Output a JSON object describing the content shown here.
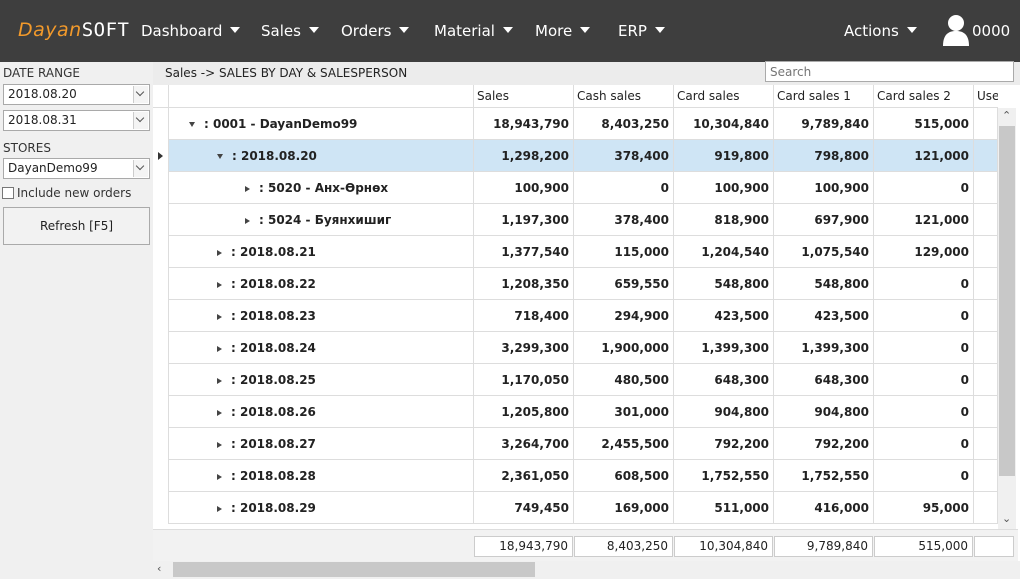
{
  "app": {
    "logo_part1": "Dayan",
    "logo_part2": "SOFT"
  },
  "nav": {
    "items": [
      "Dashboard",
      "Sales",
      "Orders",
      "Material",
      "More",
      "ERP"
    ],
    "actions": "Actions",
    "user": "0000"
  },
  "sidebar": {
    "date_range_label": "DATE RANGE",
    "date_from": "2018.08.20",
    "date_to": "2018.08.31",
    "stores_label": "STORES",
    "store": "DayanDemo99",
    "include_new_orders": "Include new orders",
    "refresh": "Refresh [F5]"
  },
  "breadcrumb": "Sales -> SALES BY DAY & SALESPERSON",
  "search": {
    "placeholder": "Search"
  },
  "grid": {
    "columns": [
      "Sales",
      "Cash sales",
      "Card sales",
      "Card sales 1",
      "Card sales 2",
      "Use"
    ],
    "rows": [
      {
        "label": ": 0001 - DayanDemo99",
        "level": 0,
        "expanded": true,
        "values": [
          "18,943,790",
          "8,403,250",
          "10,304,840",
          "9,789,840",
          "515,000"
        ]
      },
      {
        "label": ": 2018.08.20",
        "level": 1,
        "expanded": true,
        "selected": true,
        "values": [
          "1,298,200",
          "378,400",
          "919,800",
          "798,800",
          "121,000"
        ]
      },
      {
        "label": ": 5020 - Анх-Өрнөх",
        "level": 2,
        "expanded": false,
        "values": [
          "100,900",
          "0",
          "100,900",
          "100,900",
          "0"
        ]
      },
      {
        "label": ": 5024 - Буянхишиг",
        "level": 2,
        "expanded": false,
        "values": [
          "1,197,300",
          "378,400",
          "818,900",
          "697,900",
          "121,000"
        ]
      },
      {
        "label": ": 2018.08.21",
        "level": 1,
        "expanded": false,
        "values": [
          "1,377,540",
          "115,000",
          "1,204,540",
          "1,075,540",
          "129,000"
        ]
      },
      {
        "label": ": 2018.08.22",
        "level": 1,
        "expanded": false,
        "values": [
          "1,208,350",
          "659,550",
          "548,800",
          "548,800",
          "0"
        ]
      },
      {
        "label": ": 2018.08.23",
        "level": 1,
        "expanded": false,
        "values": [
          "718,400",
          "294,900",
          "423,500",
          "423,500",
          "0"
        ]
      },
      {
        "label": ": 2018.08.24",
        "level": 1,
        "expanded": false,
        "values": [
          "3,299,300",
          "1,900,000",
          "1,399,300",
          "1,399,300",
          "0"
        ]
      },
      {
        "label": ": 2018.08.25",
        "level": 1,
        "expanded": false,
        "values": [
          "1,170,050",
          "480,500",
          "648,300",
          "648,300",
          "0"
        ]
      },
      {
        "label": ": 2018.08.26",
        "level": 1,
        "expanded": false,
        "values": [
          "1,205,800",
          "301,000",
          "904,800",
          "904,800",
          "0"
        ]
      },
      {
        "label": ": 2018.08.27",
        "level": 1,
        "expanded": false,
        "values": [
          "3,264,700",
          "2,455,500",
          "792,200",
          "792,200",
          "0"
        ]
      },
      {
        "label": ": 2018.08.28",
        "level": 1,
        "expanded": false,
        "values": [
          "2,361,050",
          "608,500",
          "1,752,550",
          "1,752,550",
          "0"
        ]
      },
      {
        "label": ": 2018.08.29",
        "level": 1,
        "expanded": false,
        "values": [
          "749,450",
          "169,000",
          "511,000",
          "416,000",
          "95,000"
        ]
      }
    ],
    "totals": [
      "18,943,790",
      "8,403,250",
      "10,304,840",
      "9,789,840",
      "515,000"
    ]
  },
  "colors": {
    "topbar": "#3e3e3e",
    "logo_accent": "#f39a2b",
    "selected_row": "#cfe5f5"
  },
  "icons": [
    "user-icon",
    "caret-down-icon",
    "dropdown-arrow-icon",
    "tree-expand-icon",
    "tree-collapse-icon",
    "row-pointer-icon"
  ]
}
